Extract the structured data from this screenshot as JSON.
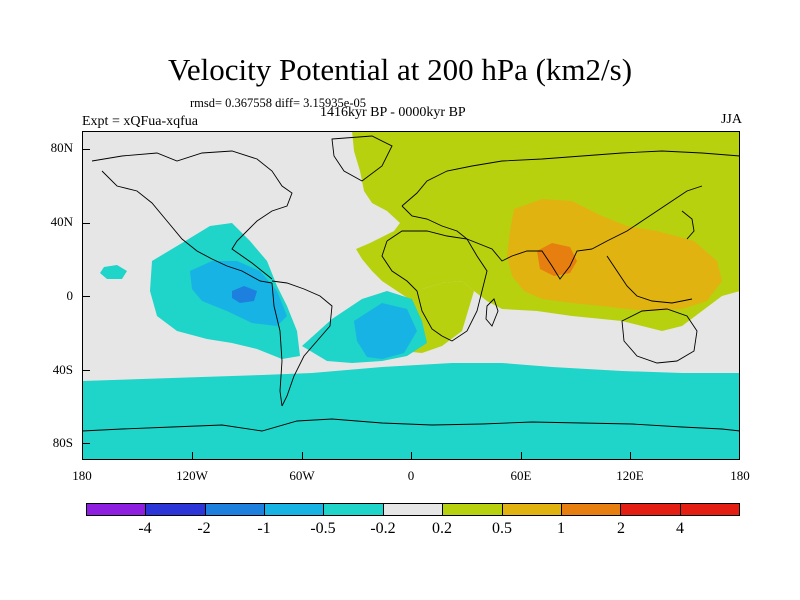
{
  "title": "Velocity Potential at 200 hPa (km2/s)",
  "stats": "rmsd= 0.367558 diff= 3.15935e-05",
  "experiment": "Expt = xQFua-xqfua",
  "period": "1416kyr BP - 0000kyr BP",
  "season": "JJA",
  "lat_labels": [
    "80N",
    "40N",
    "0",
    "40S",
    "80S"
  ],
  "lon_labels": [
    "180",
    "120W",
    "60W",
    "0",
    "60E",
    "120E",
    "180"
  ],
  "colorbar": {
    "labels": [
      "-4",
      "-2",
      "-1",
      "-0.5",
      "-0.2",
      "0.2",
      "0.5",
      "1",
      "2",
      "4"
    ],
    "colors": [
      "#8f1fe0",
      "#2c35d8",
      "#1d7fde",
      "#17b3e5",
      "#1fd4c8",
      "#e6e6e6",
      "#b7d10f",
      "#e0b310",
      "#e67e10",
      "#e51e13",
      "#e51e13"
    ]
  }
}
